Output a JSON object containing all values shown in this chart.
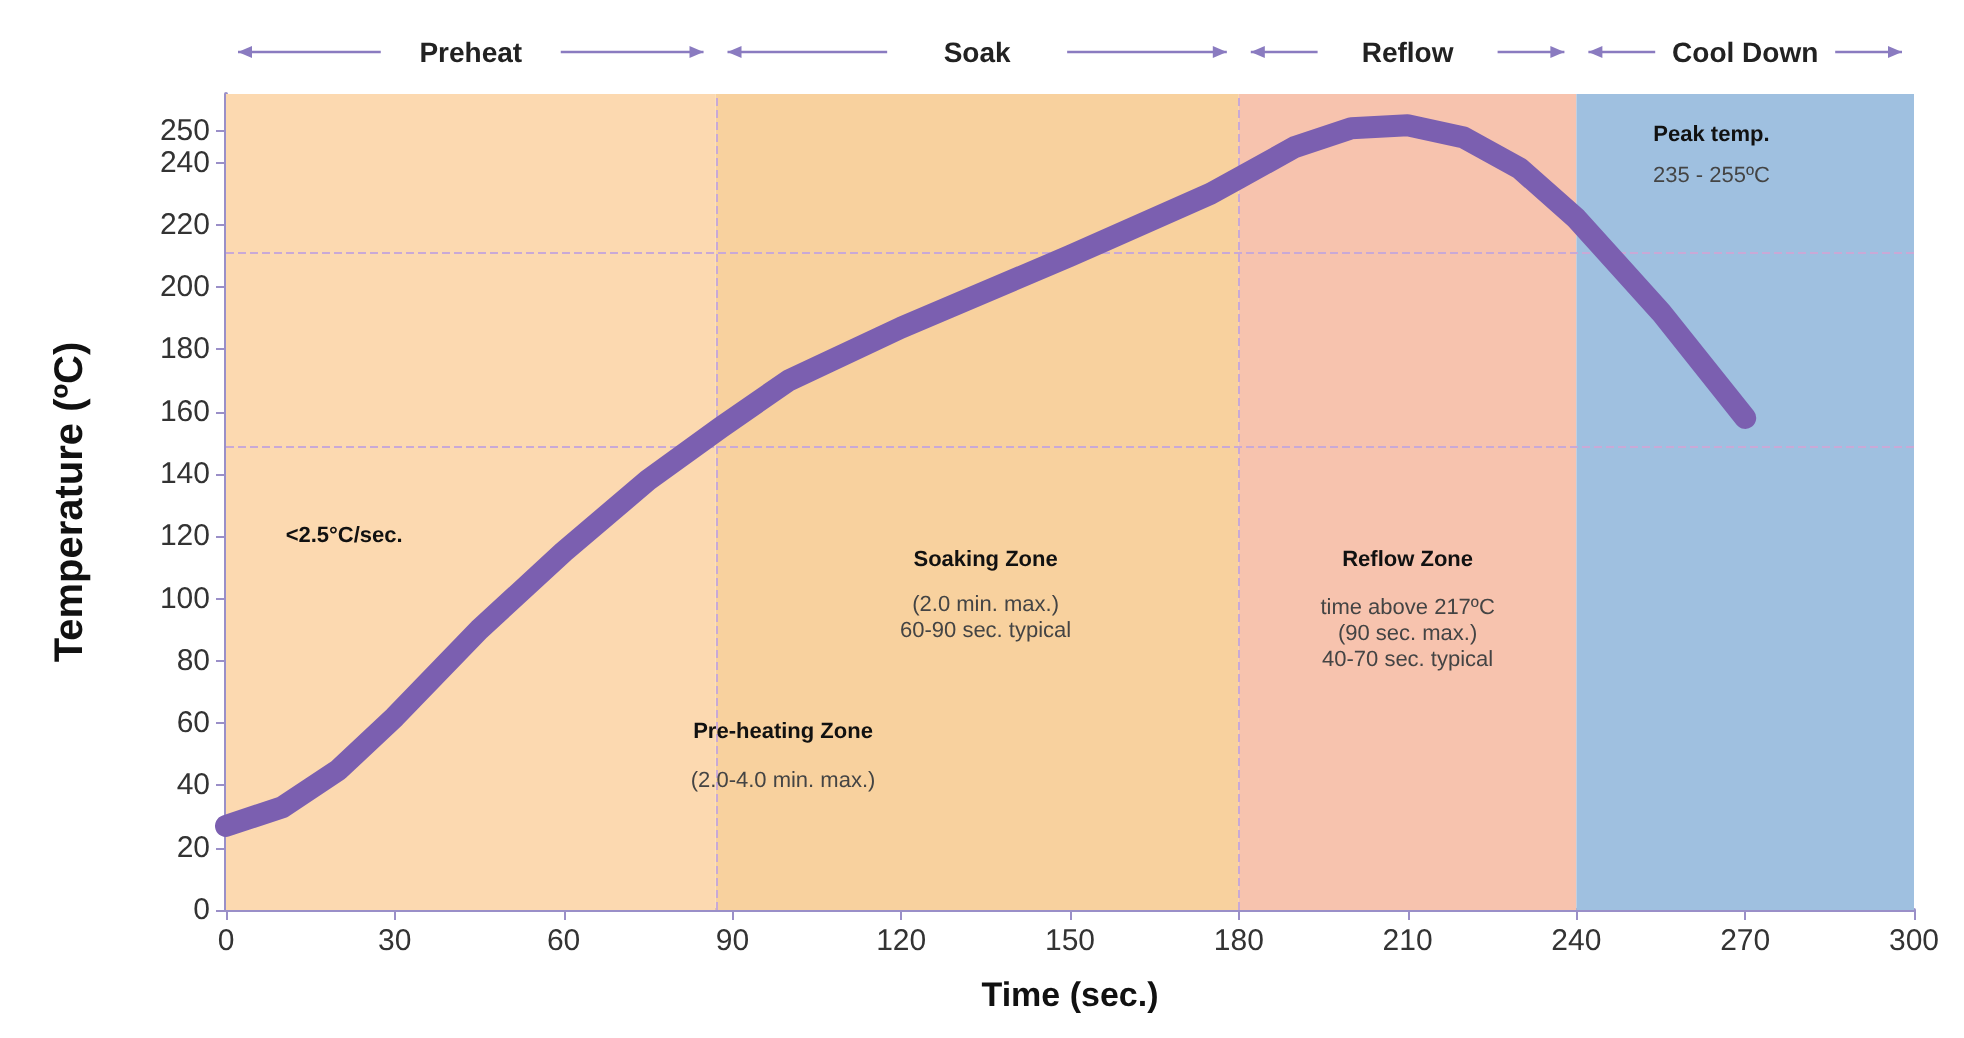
{
  "chart_data": {
    "type": "line",
    "xlabel": "Time (sec.)",
    "ylabel": "Temperature (ºC)",
    "x": [
      0,
      10,
      20,
      30,
      45,
      60,
      75,
      88,
      100,
      120,
      150,
      175,
      180,
      190,
      200,
      210,
      220,
      230,
      240,
      255,
      270
    ],
    "series": [
      {
        "color": "#7b5fb0",
        "values": [
          27,
          33,
          45,
          62,
          90,
          115,
          138,
          155,
          170,
          187,
          210,
          230,
          235,
          245,
          251,
          252,
          248,
          238,
          222,
          192,
          158
        ]
      }
    ],
    "xlim": [
      0,
      300
    ],
    "xticks": [
      0,
      30,
      60,
      90,
      120,
      150,
      180,
      210,
      240,
      270,
      300
    ],
    "ylim": [
      0,
      262
    ],
    "yticks": [
      0,
      20,
      40,
      60,
      80,
      100,
      120,
      140,
      160,
      180,
      200,
      220,
      240,
      250
    ],
    "grid": false,
    "line_style": "solid",
    "bands": [
      {
        "axis": "x",
        "from": 0,
        "to": 87,
        "label": "Preheat",
        "color": "#fcd9b0"
      },
      {
        "axis": "x",
        "from": 87,
        "to": 180,
        "label": "Soak",
        "color": "#f8d19e"
      },
      {
        "axis": "x",
        "from": 180,
        "to": 240,
        "label": "Reflow",
        "color": "#f7c3ae"
      },
      {
        "axis": "x",
        "from": 240,
        "to": 300,
        "label": "Cool Down",
        "color": "#9fc0e0"
      }
    ],
    "ref_lines": [
      {
        "axis": "y",
        "value": 211,
        "color": "#c9a9d6",
        "line_style": "dashed"
      },
      {
        "axis": "y",
        "value": 149,
        "color": "#c9a9d6",
        "line_style": "dashed"
      },
      {
        "axis": "x",
        "value": 87,
        "color": "#c9a9d6",
        "line_style": "dashed"
      },
      {
        "axis": "x",
        "value": 180,
        "color": "#c9a9d6",
        "line_style": "dashed"
      }
    ],
    "annotations": [
      "<2.5°C/sec.",
      "Soaking Zone",
      "(2.0 min. max.)\n60-90 sec. typical",
      "Reflow Zone",
      "time above 217ºC\n(90 sec. max.)\n40-70 sec. typical",
      "Pre-heating Zone",
      "(2.0-4.0 min. max.)",
      "Peak temp.",
      "235 - 255ºC"
    ]
  }
}
